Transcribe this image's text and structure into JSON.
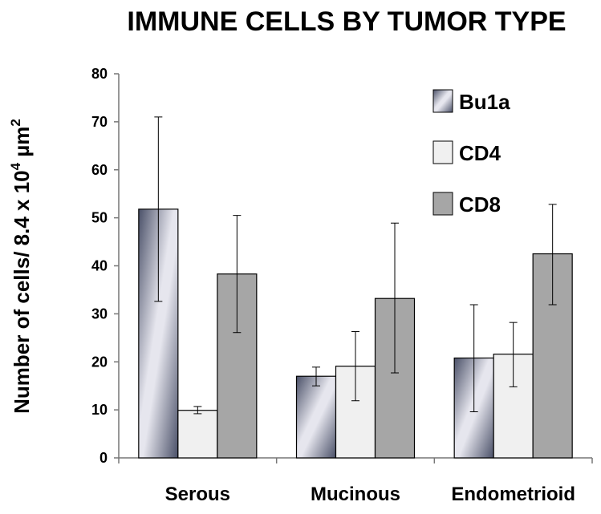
{
  "chart_data": {
    "type": "bar",
    "title": "IMMUNE CELLS BY TUMOR TYPE",
    "ylabel": "Number of cells/ 8.4 x 10",
    "ylabel_exponent": "4",
    "ylabel_unit": " µm",
    "ylabel_unit_exponent": "2",
    "xlabel": "",
    "ylim": [
      0,
      80
    ],
    "yticks": [
      0,
      10,
      20,
      30,
      40,
      50,
      60,
      70,
      80
    ],
    "grid": false,
    "legend_position": "top-right",
    "categories": [
      "Serous",
      "Mucinous",
      "Endometrioid"
    ],
    "series": [
      {
        "name": "Bu1a",
        "values": [
          51.8,
          17.0,
          20.8
        ],
        "err_low": [
          32.6,
          15.0,
          9.6
        ],
        "err_high": [
          71.0,
          18.9,
          31.9
        ],
        "color": "#8a8ea6",
        "style": "gradient-stripe"
      },
      {
        "name": "CD4",
        "values": [
          9.9,
          19.1,
          21.6
        ],
        "err_low": [
          9.2,
          11.9,
          14.8
        ],
        "err_high": [
          10.7,
          26.3,
          28.2
        ],
        "color": "#f0f0f0",
        "style": "solid"
      },
      {
        "name": "CD8",
        "values": [
          38.3,
          33.2,
          42.5
        ],
        "err_low": [
          26.1,
          17.7,
          31.9
        ],
        "err_high": [
          50.5,
          48.9,
          52.8
        ],
        "color": "#a6a6a6",
        "style": "solid"
      }
    ]
  }
}
